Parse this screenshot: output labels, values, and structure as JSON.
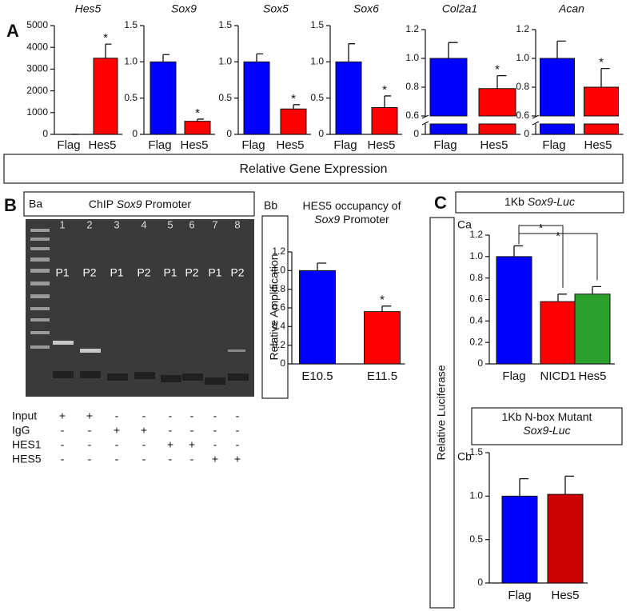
{
  "chart_data": [
    {
      "type": "bar",
      "title": "Hes5",
      "categories": [
        "Flag",
        "Hes5"
      ],
      "values": [
        0,
        3500
      ],
      "errors": [
        0,
        650
      ],
      "colors": [
        "#0000ff",
        "#ff0000"
      ],
      "stars": [
        null,
        "*"
      ],
      "ylim": [
        0,
        5000
      ],
      "yticks": [
        0,
        1000,
        2000,
        3000,
        4000,
        5000
      ]
    },
    {
      "type": "bar",
      "title": "Sox9",
      "categories": [
        "Flag",
        "Hes5"
      ],
      "values": [
        1.0,
        0.18
      ],
      "errors": [
        0.1,
        0.03
      ],
      "colors": [
        "#0000ff",
        "#ff0000"
      ],
      "stars": [
        null,
        "*"
      ],
      "ylim": [
        0,
        1.5
      ],
      "yticks": [
        0,
        0.5,
        {
          "value": 1,
          "label": "1.0"
        },
        1.5
      ]
    },
    {
      "type": "bar",
      "title": "Sox5",
      "categories": [
        "Flag",
        "Hes5"
      ],
      "values": [
        1.0,
        0.35
      ],
      "errors": [
        0.11,
        0.06
      ],
      "colors": [
        "#0000ff",
        "#ff0000"
      ],
      "stars": [
        null,
        "*"
      ],
      "ylim": [
        0,
        1.5
      ],
      "yticks": [
        0,
        0.5,
        {
          "value": 1,
          "label": "1.0"
        },
        1.5
      ]
    },
    {
      "type": "bar",
      "title": "Sox6",
      "categories": [
        "Flag",
        "Hes5"
      ],
      "values": [
        1.0,
        0.37
      ],
      "errors": [
        0.25,
        0.16
      ],
      "colors": [
        "#0000ff",
        "#ff0000"
      ],
      "stars": [
        null,
        "*"
      ],
      "ylim": [
        0,
        1.5
      ],
      "yticks": [
        0,
        0.5,
        {
          "value": 1,
          "label": "1.0"
        },
        1.5
      ]
    },
    {
      "type": "bar",
      "title": "Col2a1",
      "categories": [
        "Flag",
        "Hes5"
      ],
      "values": [
        1.0,
        0.79
      ],
      "errors": [
        0.11,
        0.09
      ],
      "colors": [
        "#0000ff",
        "#ff0000"
      ],
      "stars": [
        null,
        "*"
      ],
      "ylim": [
        0,
        1.2
      ],
      "axis_break": [
        0.08,
        0.6
      ],
      "yticks": [
        0,
        0.6,
        0.8,
        {
          "value": 1,
          "label": "1.0"
        },
        1.2
      ]
    },
    {
      "type": "bar",
      "title": "Acan",
      "categories": [
        "Flag",
        "Hes5"
      ],
      "values": [
        1.0,
        0.8
      ],
      "errors": [
        0.12,
        0.13
      ],
      "colors": [
        "#0000ff",
        "#ff0000"
      ],
      "stars": [
        null,
        "*"
      ],
      "ylim": [
        0,
        1.2
      ],
      "axis_break": [
        0.08,
        0.6
      ],
      "yticks": [
        0,
        0.6,
        0.8,
        {
          "value": 1,
          "label": "1.0"
        },
        1.2
      ]
    },
    {
      "type": "bar",
      "title_parts": [
        {
          "text": "HES5 occupancy of"
        },
        {
          "text": "Sox9",
          "style": "italic"
        },
        {
          "text": " Promoter"
        }
      ],
      "ylabel": "Relative Amplification",
      "categories": [
        "E10.5",
        "E11.5"
      ],
      "values": [
        1.0,
        0.56
      ],
      "errors": [
        0.08,
        0.06
      ],
      "colors": [
        "#0000ff",
        "#ff0000"
      ],
      "stars": [
        null,
        "*"
      ],
      "ylim": [
        0,
        1.2
      ],
      "yticks": [
        0,
        0.2,
        0.4,
        0.6,
        0.8,
        {
          "value": 1,
          "label": "1.0"
        },
        1.2
      ]
    },
    {
      "type": "bar",
      "title_parts": [
        {
          "text": "1Kb "
        },
        {
          "text": "Sox9-Luc",
          "style": "italic"
        }
      ],
      "categories": [
        "Flag",
        "NICD1",
        "Hes5"
      ],
      "values": [
        1.0,
        0.58,
        0.65
      ],
      "errors": [
        0.1,
        0.07,
        0.07
      ],
      "colors": [
        "#0000ff",
        "#ff0000",
        "#2ca02c"
      ],
      "comparisons": [
        {
          "pair": [
            0,
            1
          ],
          "label": "*"
        },
        {
          "pair": [
            0,
            2
          ],
          "label": "*"
        }
      ],
      "ylim": [
        0,
        1.2
      ],
      "yticks": [
        0,
        0.2,
        0.4,
        0.6,
        0.8,
        {
          "value": 1,
          "label": "1.0"
        },
        1.2
      ]
    },
    {
      "type": "bar",
      "title_parts": [
        {
          "text": "1Kb N-box Mutant"
        },
        {
          "text": "Sox9-Luc",
          "style": "italic"
        }
      ],
      "categories": [
        "Flag",
        "Hes5"
      ],
      "values": [
        1.0,
        1.02
      ],
      "errors": [
        0.2,
        0.21
      ],
      "colors": [
        "#0000ff",
        "#cc0000"
      ],
      "ylim": [
        0,
        1.5
      ],
      "yticks": [
        0,
        0.5,
        {
          "value": 1,
          "label": "1.0"
        },
        1.5
      ]
    }
  ],
  "labels": {
    "a": "A",
    "b": "B",
    "c": "C",
    "ba": "Ba",
    "bb": "Bb",
    "ca": "Ca",
    "cb": "Cb"
  },
  "panel_a": {
    "caption": "Relative Gene Expression"
  },
  "panel_c": {
    "ylabel": "Relative Luciferase"
  },
  "gel": {
    "title_parts": [
      {
        "text": "ChIP "
      },
      {
        "text": "Sox9",
        "style": "italic"
      },
      {
        "text": " Promoter"
      }
    ],
    "lanes": [
      "1",
      "2",
      "3",
      "4",
      "5",
      "6",
      "7",
      "8"
    ],
    "primers": [
      "P1",
      "P2",
      "P1",
      "P2",
      "P1",
      "P2",
      "P1",
      "P2"
    ],
    "conditions": [
      {
        "name": "Input",
        "signs": [
          "+",
          "+",
          "-",
          "-",
          "-",
          "-",
          "-",
          "-"
        ]
      },
      {
        "name": "IgG",
        "signs": [
          "-",
          "-",
          "+",
          "+",
          "-",
          "-",
          "-",
          "-"
        ]
      },
      {
        "name": "HES1",
        "signs": [
          "-",
          "-",
          "-",
          "-",
          "+",
          "+",
          "-",
          "-"
        ]
      },
      {
        "name": "HES5",
        "signs": [
          "-",
          "-",
          "-",
          "-",
          "-",
          "-",
          "+",
          "+"
        ]
      }
    ]
  }
}
